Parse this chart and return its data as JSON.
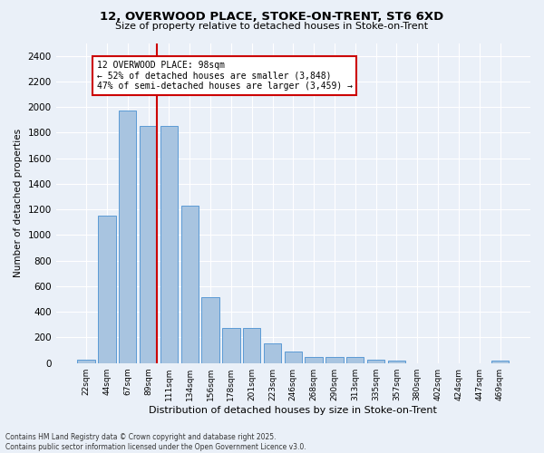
{
  "title_line1": "12, OVERWOOD PLACE, STOKE-ON-TRENT, ST6 6XD",
  "title_line2": "Size of property relative to detached houses in Stoke-on-Trent",
  "xlabel": "Distribution of detached houses by size in Stoke-on-Trent",
  "ylabel": "Number of detached properties",
  "categories": [
    "22sqm",
    "44sqm",
    "67sqm",
    "89sqm",
    "111sqm",
    "134sqm",
    "156sqm",
    "178sqm",
    "201sqm",
    "223sqm",
    "246sqm",
    "268sqm",
    "290sqm",
    "313sqm",
    "335sqm",
    "357sqm",
    "380sqm",
    "402sqm",
    "424sqm",
    "447sqm",
    "469sqm"
  ],
  "values": [
    25,
    1155,
    1970,
    1850,
    1850,
    1230,
    515,
    275,
    275,
    155,
    90,
    50,
    45,
    45,
    25,
    20,
    0,
    0,
    0,
    0,
    20
  ],
  "bar_color": "#a8c4e0",
  "bar_edge_color": "#5b9bd5",
  "vline_color": "#cc0000",
  "annotation_text": "12 OVERWOOD PLACE: 98sqm\n← 52% of detached houses are smaller (3,848)\n47% of semi-detached houses are larger (3,459) →",
  "annotation_box_color": "#ffffff",
  "annotation_box_edge_color": "#cc0000",
  "ylim": [
    0,
    2500
  ],
  "yticks": [
    0,
    200,
    400,
    600,
    800,
    1000,
    1200,
    1400,
    1600,
    1800,
    2000,
    2200,
    2400
  ],
  "bg_color": "#eaf0f8",
  "footer_line1": "Contains HM Land Registry data © Crown copyright and database right 2025.",
  "footer_line2": "Contains public sector information licensed under the Open Government Licence v3.0."
}
